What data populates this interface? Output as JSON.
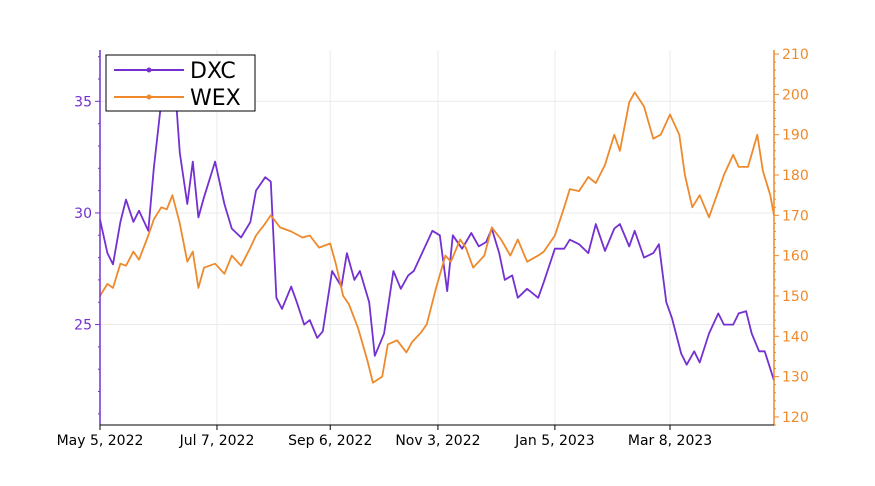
{
  "chart_data": {
    "type": "line",
    "title": "",
    "xlabel": "",
    "ylabel_left": "",
    "ylabel_right": "",
    "grid": true,
    "legend_position": "top-left",
    "x_range": [
      "2022-05-05",
      "2023-05-03"
    ],
    "x_ticks": [
      "May 5, 2022",
      "Jul 7, 2022",
      "Sep 6, 2022",
      "Nov 3, 2022",
      "Jan 5, 2023",
      "Mar 8, 2023"
    ],
    "x_tick_dates": [
      "2022-05-05",
      "2022-07-07",
      "2022-09-06",
      "2022-11-03",
      "2023-01-05",
      "2023-03-08"
    ],
    "y_left": {
      "range": [
        20.5,
        37.3
      ],
      "ticks": [
        25,
        30,
        35
      ],
      "color": "#7430d0"
    },
    "y_right": {
      "range": [
        118,
        211
      ],
      "ticks": [
        120,
        130,
        140,
        150,
        160,
        170,
        180,
        190,
        200,
        210
      ],
      "color": "#ee8a2c"
    },
    "series": [
      {
        "name": "DXC",
        "axis": "left",
        "color": "#7430d0",
        "points": [
          [
            "2022-05-05",
            29.7
          ],
          [
            "2022-05-09",
            28.2
          ],
          [
            "2022-05-12",
            27.7
          ],
          [
            "2022-05-16",
            29.6
          ],
          [
            "2022-05-19",
            30.6
          ],
          [
            "2022-05-23",
            29.6
          ],
          [
            "2022-05-26",
            30.1
          ],
          [
            "2022-05-31",
            29.2
          ],
          [
            "2022-06-03",
            32.0
          ],
          [
            "2022-06-07",
            35.0
          ],
          [
            "2022-06-10",
            35.4
          ],
          [
            "2022-06-15",
            35.0
          ],
          [
            "2022-06-17",
            32.7
          ],
          [
            "2022-06-21",
            30.4
          ],
          [
            "2022-06-24",
            32.3
          ],
          [
            "2022-06-27",
            29.8
          ],
          [
            "2022-06-30",
            30.7
          ],
          [
            "2022-07-06",
            32.3
          ],
          [
            "2022-07-11",
            30.4
          ],
          [
            "2022-07-15",
            29.3
          ],
          [
            "2022-07-20",
            28.9
          ],
          [
            "2022-07-25",
            29.6
          ],
          [
            "2022-07-28",
            31.0
          ],
          [
            "2022-08-02",
            31.6
          ],
          [
            "2022-08-05",
            31.4
          ],
          [
            "2022-08-08",
            26.2
          ],
          [
            "2022-08-11",
            25.7
          ],
          [
            "2022-08-16",
            26.7
          ],
          [
            "2022-08-19",
            26.0
          ],
          [
            "2022-08-23",
            25.0
          ],
          [
            "2022-08-26",
            25.2
          ],
          [
            "2022-08-30",
            24.4
          ],
          [
            "2022-09-02",
            24.7
          ],
          [
            "2022-09-07",
            27.4
          ],
          [
            "2022-09-12",
            26.7
          ],
          [
            "2022-09-15",
            28.2
          ],
          [
            "2022-09-19",
            27.0
          ],
          [
            "2022-09-22",
            27.4
          ],
          [
            "2022-09-27",
            26.0
          ],
          [
            "2022-09-30",
            23.6
          ],
          [
            "2022-10-05",
            24.6
          ],
          [
            "2022-10-10",
            27.4
          ],
          [
            "2022-10-14",
            26.6
          ],
          [
            "2022-10-18",
            27.2
          ],
          [
            "2022-10-21",
            27.4
          ],
          [
            "2022-10-26",
            28.3
          ],
          [
            "2022-10-31",
            29.2
          ],
          [
            "2022-11-04",
            29.0
          ],
          [
            "2022-11-08",
            26.5
          ],
          [
            "2022-11-11",
            29.0
          ],
          [
            "2022-11-16",
            28.4
          ],
          [
            "2022-11-21",
            29.1
          ],
          [
            "2022-11-25",
            28.5
          ],
          [
            "2022-11-29",
            28.7
          ],
          [
            "2022-12-02",
            29.3
          ],
          [
            "2022-12-06",
            28.2
          ],
          [
            "2022-12-09",
            27.0
          ],
          [
            "2022-12-13",
            27.2
          ],
          [
            "2022-12-16",
            26.2
          ],
          [
            "2022-12-21",
            26.6
          ],
          [
            "2022-12-27",
            26.2
          ],
          [
            "2022-12-30",
            26.9
          ],
          [
            "2023-01-05",
            28.4
          ],
          [
            "2023-01-10",
            28.4
          ],
          [
            "2023-01-13",
            28.8
          ],
          [
            "2023-01-18",
            28.6
          ],
          [
            "2023-01-23",
            28.2
          ],
          [
            "2023-01-27",
            29.5
          ],
          [
            "2023-02-01",
            28.3
          ],
          [
            "2023-02-06",
            29.3
          ],
          [
            "2023-02-09",
            29.5
          ],
          [
            "2023-02-14",
            28.5
          ],
          [
            "2023-02-17",
            29.2
          ],
          [
            "2023-02-22",
            28.0
          ],
          [
            "2023-02-27",
            28.2
          ],
          [
            "2023-03-02",
            28.6
          ],
          [
            "2023-03-06",
            26.0
          ],
          [
            "2023-03-09",
            25.3
          ],
          [
            "2023-03-14",
            23.7
          ],
          [
            "2023-03-17",
            23.2
          ],
          [
            "2023-03-21",
            23.8
          ],
          [
            "2023-03-24",
            23.3
          ],
          [
            "2023-03-29",
            24.6
          ],
          [
            "2023-04-03",
            25.5
          ],
          [
            "2023-04-06",
            25.0
          ],
          [
            "2023-04-11",
            25.0
          ],
          [
            "2023-04-14",
            25.5
          ],
          [
            "2023-04-18",
            25.6
          ],
          [
            "2023-04-21",
            24.6
          ],
          [
            "2023-04-25",
            23.8
          ],
          [
            "2023-04-28",
            23.8
          ],
          [
            "2023-05-03",
            22.5
          ]
        ]
      },
      {
        "name": "WEX",
        "axis": "right",
        "color": "#ee8a2c",
        "points": [
          [
            "2022-05-05",
            150.0
          ],
          [
            "2022-05-09",
            153.0
          ],
          [
            "2022-05-12",
            152.0
          ],
          [
            "2022-05-16",
            158.0
          ],
          [
            "2022-05-19",
            157.5
          ],
          [
            "2022-05-23",
            161.0
          ],
          [
            "2022-05-26",
            159.0
          ],
          [
            "2022-05-31",
            165.0
          ],
          [
            "2022-06-03",
            169.0
          ],
          [
            "2022-06-07",
            172.0
          ],
          [
            "2022-06-10",
            171.5
          ],
          [
            "2022-06-13",
            175.0
          ],
          [
            "2022-06-17",
            168.0
          ],
          [
            "2022-06-21",
            158.5
          ],
          [
            "2022-06-24",
            161.0
          ],
          [
            "2022-06-27",
            152.0
          ],
          [
            "2022-06-30",
            157.0
          ],
          [
            "2022-07-06",
            158.0
          ],
          [
            "2022-07-11",
            155.5
          ],
          [
            "2022-07-15",
            160.0
          ],
          [
            "2022-07-20",
            157.5
          ],
          [
            "2022-07-25",
            162.0
          ],
          [
            "2022-07-28",
            165.0
          ],
          [
            "2022-08-02",
            168.0
          ],
          [
            "2022-08-05",
            170.0
          ],
          [
            "2022-08-10",
            167.0
          ],
          [
            "2022-08-16",
            166.0
          ],
          [
            "2022-08-22",
            164.5
          ],
          [
            "2022-08-26",
            165.0
          ],
          [
            "2022-08-31",
            162.0
          ],
          [
            "2022-09-06",
            163.0
          ],
          [
            "2022-09-09",
            158.0
          ],
          [
            "2022-09-13",
            150.0
          ],
          [
            "2022-09-16",
            148.0
          ],
          [
            "2022-09-21",
            142.0
          ],
          [
            "2022-09-26",
            134.0
          ],
          [
            "2022-09-29",
            128.5
          ],
          [
            "2022-10-04",
            130.0
          ],
          [
            "2022-10-07",
            138.0
          ],
          [
            "2022-10-12",
            139.0
          ],
          [
            "2022-10-17",
            136.0
          ],
          [
            "2022-10-20",
            138.5
          ],
          [
            "2022-10-25",
            141.0
          ],
          [
            "2022-10-28",
            143.0
          ],
          [
            "2022-11-02",
            152.0
          ],
          [
            "2022-11-07",
            160.0
          ],
          [
            "2022-11-10",
            158.5
          ],
          [
            "2022-11-15",
            164.0
          ],
          [
            "2022-11-18",
            162.0
          ],
          [
            "2022-11-22",
            157.0
          ],
          [
            "2022-11-28",
            160.0
          ],
          [
            "2022-12-02",
            167.0
          ],
          [
            "2022-12-07",
            164.0
          ],
          [
            "2022-12-12",
            160.0
          ],
          [
            "2022-12-16",
            164.0
          ],
          [
            "2022-12-21",
            158.5
          ],
          [
            "2022-12-27",
            160.0
          ],
          [
            "2022-12-30",
            161.0
          ],
          [
            "2023-01-05",
            165.0
          ],
          [
            "2023-01-10",
            172.0
          ],
          [
            "2023-01-13",
            176.5
          ],
          [
            "2023-01-18",
            176.0
          ],
          [
            "2023-01-23",
            179.5
          ],
          [
            "2023-01-27",
            178.0
          ],
          [
            "2023-02-01",
            182.5
          ],
          [
            "2023-02-06",
            190.0
          ],
          [
            "2023-02-09",
            186.0
          ],
          [
            "2023-02-14",
            198.0
          ],
          [
            "2023-02-17",
            200.5
          ],
          [
            "2023-02-22",
            197.0
          ],
          [
            "2023-02-27",
            189.0
          ],
          [
            "2023-03-03",
            190.0
          ],
          [
            "2023-03-08",
            195.0
          ],
          [
            "2023-03-13",
            190.0
          ],
          [
            "2023-03-16",
            180.0
          ],
          [
            "2023-03-20",
            172.0
          ],
          [
            "2023-03-24",
            175.0
          ],
          [
            "2023-03-29",
            169.5
          ],
          [
            "2023-04-03",
            176.0
          ],
          [
            "2023-04-06",
            180.0
          ],
          [
            "2023-04-11",
            185.0
          ],
          [
            "2023-04-14",
            182.0
          ],
          [
            "2023-04-19",
            182.0
          ],
          [
            "2023-04-24",
            190.0
          ],
          [
            "2023-04-27",
            181.0
          ],
          [
            "2023-05-01",
            175.0
          ],
          [
            "2023-05-03",
            170.0
          ]
        ]
      }
    ]
  }
}
